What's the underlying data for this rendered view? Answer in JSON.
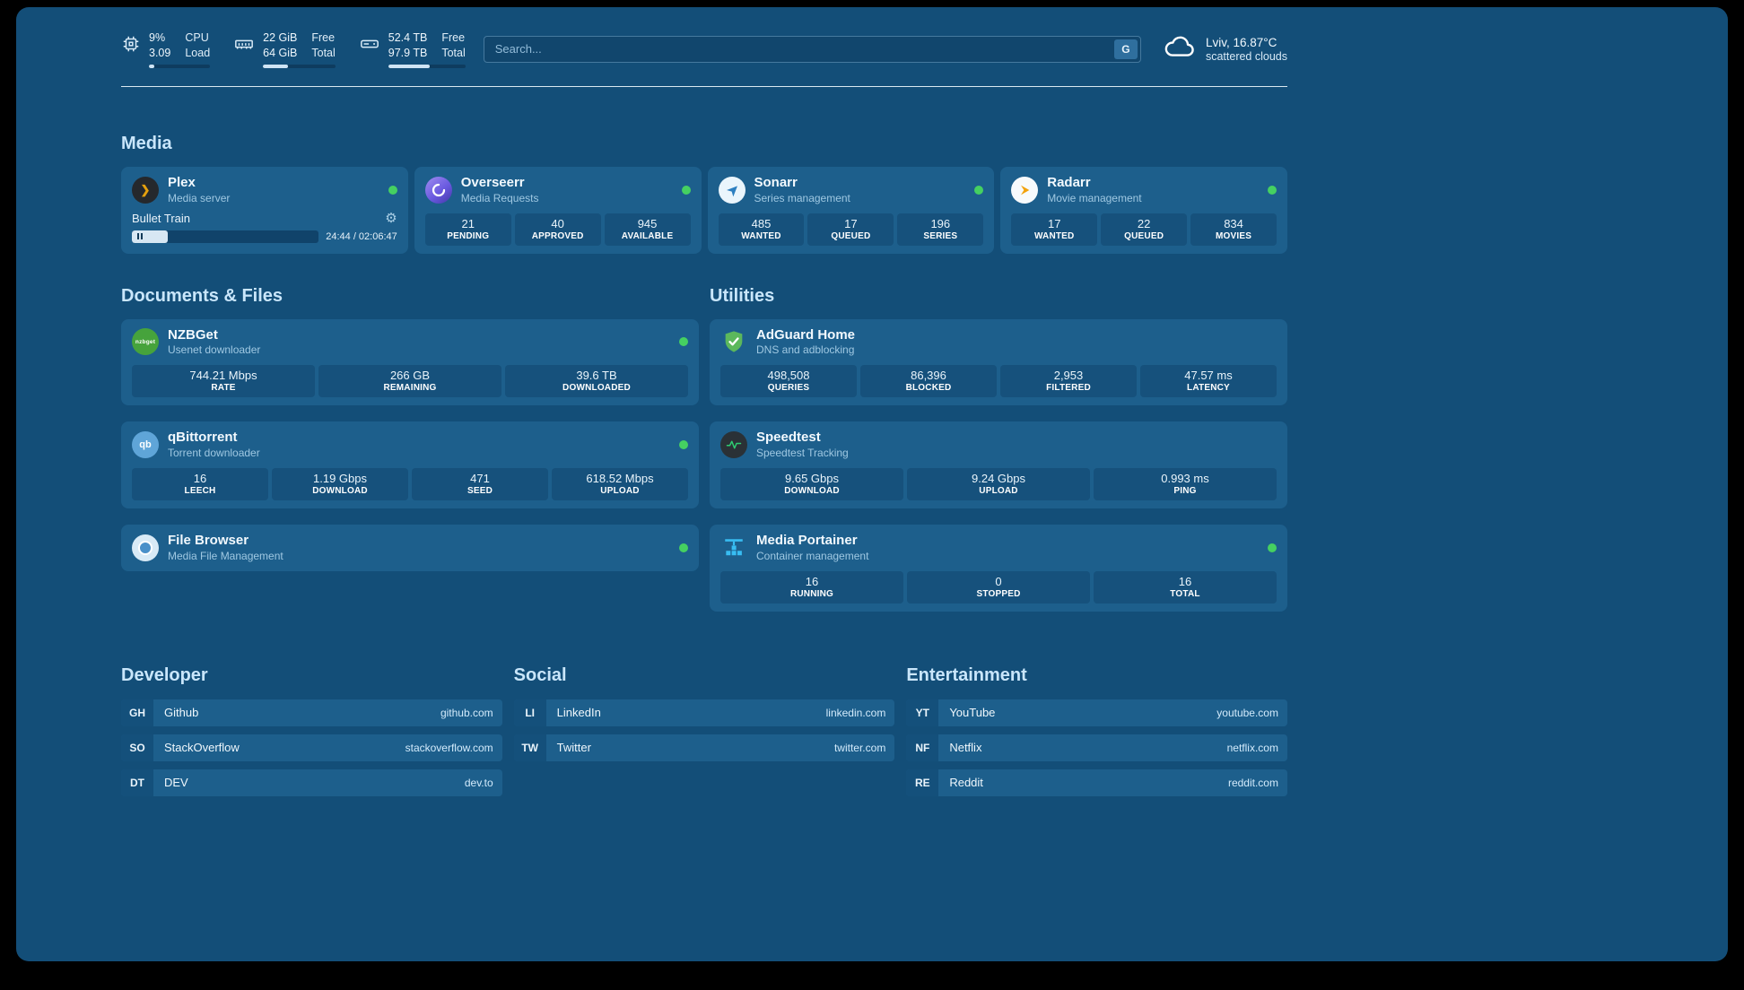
{
  "colors": {
    "accent": "#c9e6fb",
    "status_green": "#45d061"
  },
  "icons": {
    "plex_glyph": "❯",
    "gear_glyph": "⚙",
    "nzbget_text": "nzbget",
    "qbit_text": "qb"
  },
  "topbar": {
    "cpu": {
      "value_top": "9%",
      "label_top": "CPU",
      "value_bottom": "3.09",
      "label_bottom": "Load",
      "progress": 9
    },
    "ram": {
      "value_top": "22 GiB",
      "label_top": "Free",
      "value_bottom": "64 GiB",
      "label_bottom": "Total",
      "progress": 34
    },
    "disk": {
      "value_top": "52.4 TB",
      "label_top": "Free",
      "value_bottom": "97.9 TB",
      "label_bottom": "Total",
      "progress": 54
    },
    "search": {
      "placeholder": "Search...",
      "button_label": "G"
    },
    "weather": {
      "location": "Lviv, 16.87°C",
      "condition": "scattered clouds"
    }
  },
  "media": {
    "title": "Media",
    "plex": {
      "name": "Plex",
      "subtitle": "Media server",
      "now_playing": "Bullet Train",
      "time": "24:44 / 02:06:47",
      "progress": 19
    },
    "overseerr": {
      "name": "Overseerr",
      "subtitle": "Media Requests",
      "stats": [
        {
          "value": "21",
          "label": "PENDING"
        },
        {
          "value": "40",
          "label": "APPROVED"
        },
        {
          "value": "945",
          "label": "AVAILABLE"
        }
      ]
    },
    "sonarr": {
      "name": "Sonarr",
      "subtitle": "Series management",
      "stats": [
        {
          "value": "485",
          "label": "WANTED"
        },
        {
          "value": "17",
          "label": "QUEUED"
        },
        {
          "value": "196",
          "label": "SERIES"
        }
      ]
    },
    "radarr": {
      "name": "Radarr",
      "subtitle": "Movie management",
      "stats": [
        {
          "value": "17",
          "label": "WANTED"
        },
        {
          "value": "22",
          "label": "QUEUED"
        },
        {
          "value": "834",
          "label": "MOVIES"
        }
      ]
    }
  },
  "documents": {
    "title": "Documents & Files",
    "nzbget": {
      "name": "NZBGet",
      "subtitle": "Usenet downloader",
      "stats": [
        {
          "value": "744.21 Mbps",
          "label": "RATE"
        },
        {
          "value": "266 GB",
          "label": "REMAINING"
        },
        {
          "value": "39.6 TB",
          "label": "DOWNLOADED"
        }
      ]
    },
    "qbittorrent": {
      "name": "qBittorrent",
      "subtitle": "Torrent downloader",
      "stats": [
        {
          "value": "16",
          "label": "LEECH"
        },
        {
          "value": "1.19 Gbps",
          "label": "DOWNLOAD"
        },
        {
          "value": "471",
          "label": "SEED"
        },
        {
          "value": "618.52 Mbps",
          "label": "UPLOAD"
        }
      ]
    },
    "filebrowser": {
      "name": "File Browser",
      "subtitle": "Media File Management"
    }
  },
  "utilities": {
    "title": "Utilities",
    "adguard": {
      "name": "AdGuard Home",
      "subtitle": "DNS and adblocking",
      "stats": [
        {
          "value": "498,508",
          "label": "QUERIES"
        },
        {
          "value": "86,396",
          "label": "BLOCKED"
        },
        {
          "value": "2,953",
          "label": "FILTERED"
        },
        {
          "value": "47.57 ms",
          "label": "LATENCY"
        }
      ]
    },
    "speedtest": {
      "name": "Speedtest",
      "subtitle": "Speedtest Tracking",
      "stats": [
        {
          "value": "9.65 Gbps",
          "label": "DOWNLOAD"
        },
        {
          "value": "9.24 Gbps",
          "label": "UPLOAD"
        },
        {
          "value": "0.993 ms",
          "label": "PING"
        }
      ]
    },
    "portainer": {
      "name": "Media Portainer",
      "subtitle": "Container management",
      "stats": [
        {
          "value": "16",
          "label": "RUNNING"
        },
        {
          "value": "0",
          "label": "STOPPED"
        },
        {
          "value": "16",
          "label": "TOTAL"
        }
      ]
    }
  },
  "bookmarks": {
    "developer": {
      "title": "Developer",
      "items": [
        {
          "abbr": "GH",
          "name": "Github",
          "url": "github.com"
        },
        {
          "abbr": "SO",
          "name": "StackOverflow",
          "url": "stackoverflow.com"
        },
        {
          "abbr": "DT",
          "name": "DEV",
          "url": "dev.to"
        }
      ]
    },
    "social": {
      "title": "Social",
      "items": [
        {
          "abbr": "LI",
          "name": "LinkedIn",
          "url": "linkedin.com"
        },
        {
          "abbr": "TW",
          "name": "Twitter",
          "url": "twitter.com"
        }
      ]
    },
    "entertainment": {
      "title": "Entertainment",
      "items": [
        {
          "abbr": "YT",
          "name": "YouTube",
          "url": "youtube.com"
        },
        {
          "abbr": "NF",
          "name": "Netflix",
          "url": "netflix.com"
        },
        {
          "abbr": "RE",
          "name": "Reddit",
          "url": "reddit.com"
        }
      ]
    }
  }
}
